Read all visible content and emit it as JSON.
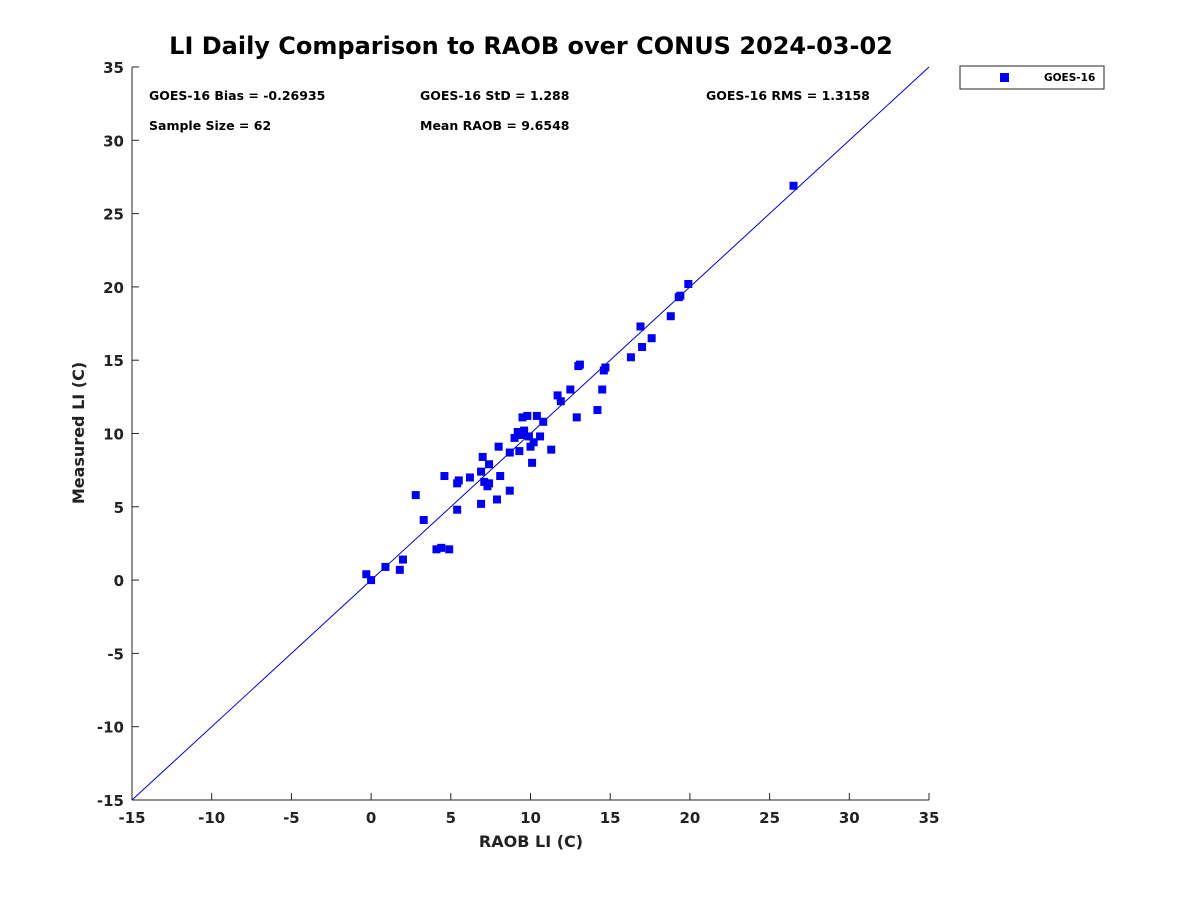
{
  "chart_data": {
    "type": "scatter",
    "title": "LI Daily Comparison to RAOB over CONUS 2024-03-02",
    "xlabel": "RAOB LI (C)",
    "ylabel": "Measured LI (C)",
    "xlim": [
      -15,
      35
    ],
    "ylim": [
      -15,
      35
    ],
    "xticks": [
      -15,
      -10,
      -5,
      0,
      5,
      10,
      15,
      20,
      25,
      30,
      35
    ],
    "yticks": [
      -15,
      -10,
      -5,
      0,
      5,
      10,
      15,
      20,
      25,
      30,
      35
    ],
    "reference_line": {
      "from": [
        -15,
        -15
      ],
      "to": [
        35,
        35
      ],
      "color": "#0000cc"
    },
    "stats": [
      {
        "text": "GOES-16 Bias = -0.26935"
      },
      {
        "text": "GOES-16 StD = 1.288"
      },
      {
        "text": "GOES-16 RMS = 1.3158"
      },
      {
        "text": "Sample Size = 62"
      },
      {
        "text": "Mean RAOB = 9.6548"
      }
    ],
    "legend": {
      "position": "top-right-outside",
      "entries": [
        "GOES-16"
      ]
    },
    "marker_color": "#0000ee",
    "series": [
      {
        "name": "GOES-16",
        "points": [
          [
            -0.3,
            0.4
          ],
          [
            0.0,
            0.0
          ],
          [
            0.9,
            0.9
          ],
          [
            1.8,
            0.7
          ],
          [
            2.0,
            1.4
          ],
          [
            2.8,
            5.8
          ],
          [
            3.3,
            4.1
          ],
          [
            4.1,
            2.1
          ],
          [
            4.4,
            2.2
          ],
          [
            4.6,
            7.1
          ],
          [
            4.9,
            2.1
          ],
          [
            5.4,
            6.6
          ],
          [
            5.5,
            6.8
          ],
          [
            5.4,
            4.8
          ],
          [
            6.2,
            7.0
          ],
          [
            6.9,
            5.2
          ],
          [
            6.9,
            7.4
          ],
          [
            7.0,
            8.4
          ],
          [
            7.1,
            6.7
          ],
          [
            7.3,
            6.4
          ],
          [
            7.4,
            7.9
          ],
          [
            7.9,
            5.5
          ],
          [
            8.0,
            9.1
          ],
          [
            8.1,
            7.1
          ],
          [
            8.7,
            6.1
          ],
          [
            8.7,
            8.7
          ],
          [
            9.0,
            9.7
          ],
          [
            9.2,
            10.1
          ],
          [
            9.3,
            8.8
          ],
          [
            9.5,
            9.9
          ],
          [
            9.5,
            11.1
          ],
          [
            9.6,
            10.2
          ],
          [
            9.8,
            11.2
          ],
          [
            9.9,
            9.8
          ],
          [
            10.0,
            9.1
          ],
          [
            10.1,
            8.0
          ],
          [
            10.2,
            9.4
          ],
          [
            10.4,
            11.2
          ],
          [
            10.6,
            9.8
          ],
          [
            10.8,
            10.8
          ],
          [
            11.3,
            8.9
          ],
          [
            11.7,
            12.6
          ],
          [
            11.9,
            12.2
          ],
          [
            12.5,
            13.0
          ],
          [
            12.9,
            11.1
          ],
          [
            13.1,
            14.7
          ],
          [
            14.2,
            11.6
          ],
          [
            14.5,
            13.0
          ],
          [
            14.6,
            14.3
          ],
          [
            14.7,
            14.5
          ],
          [
            16.3,
            15.2
          ],
          [
            16.9,
            17.3
          ],
          [
            17.0,
            15.9
          ],
          [
            17.6,
            16.5
          ],
          [
            18.8,
            18.0
          ],
          [
            19.3,
            19.3
          ],
          [
            19.4,
            19.4
          ],
          [
            19.9,
            20.2
          ],
          [
            26.5,
            26.9
          ],
          [
            13.0,
            14.6
          ],
          [
            9.4,
            10.0
          ],
          [
            7.4,
            6.6
          ]
        ]
      }
    ]
  }
}
